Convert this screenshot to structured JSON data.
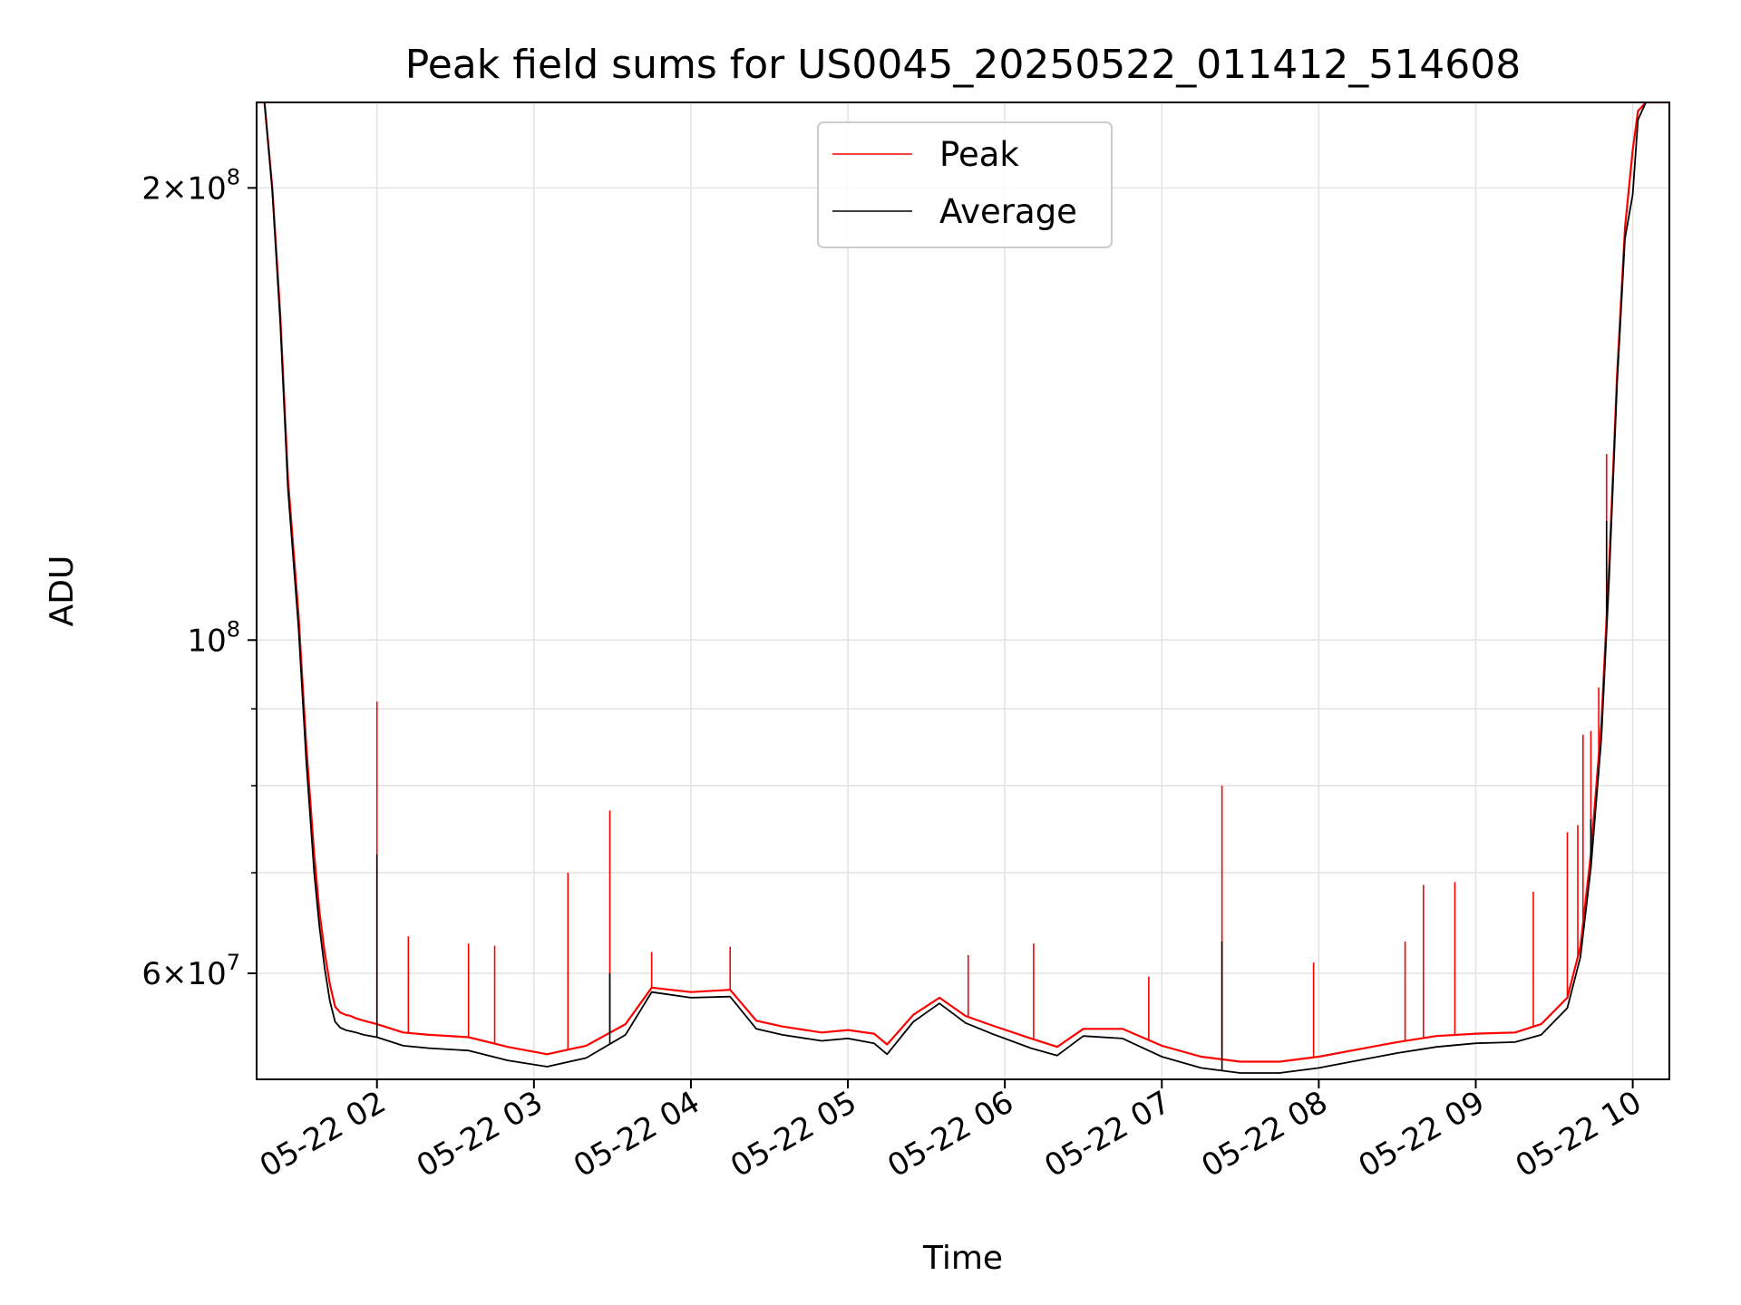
{
  "chart_data": {
    "type": "line",
    "title": "Peak field sums for US0045_20250522_011412_514608",
    "xlabel": "Time",
    "ylabel": "ADU",
    "yscale": "log",
    "grid": true,
    "legend_location": "upper center",
    "xlim": [
      "2025-05-22 01:14",
      "2025-05-22 10:14"
    ],
    "ylim": [
      51000000,
      228000000
    ],
    "x_ticks": [
      {
        "t": "2025-05-22 02:00",
        "label": "05-22 02"
      },
      {
        "t": "2025-05-22 03:00",
        "label": "05-22 03"
      },
      {
        "t": "2025-05-22 04:00",
        "label": "05-22 04"
      },
      {
        "t": "2025-05-22 05:00",
        "label": "05-22 05"
      },
      {
        "t": "2025-05-22 06:00",
        "label": "05-22 06"
      },
      {
        "t": "2025-05-22 07:00",
        "label": "05-22 07"
      },
      {
        "t": "2025-05-22 08:00",
        "label": "05-22 08"
      },
      {
        "t": "2025-05-22 09:00",
        "label": "05-22 09"
      },
      {
        "t": "2025-05-22 10:00",
        "label": "05-22 10"
      }
    ],
    "y_major_ticks": [
      {
        "value": 100000000,
        "base": "10",
        "exponent": "8"
      },
      {
        "value": 200000000,
        "mantissa": "2",
        "times": "×",
        "base": "10",
        "exponent": "8"
      },
      {
        "value": 60000000,
        "mantissa": "6",
        "times": "×",
        "base": "10",
        "exponent": "7"
      }
    ],
    "y_minor_ticks": [
      60000000,
      70000000,
      80000000,
      90000000,
      100000000,
      200000000
    ],
    "series": [
      {
        "name": "Peak",
        "color": "#ff0000",
        "x": [
          "2025-05-22 01:14",
          "2025-05-22 01:17",
          "2025-05-22 01:20",
          "2025-05-22 01:23",
          "2025-05-22 01:26",
          "2025-05-22 01:30",
          "2025-05-22 01:33",
          "2025-05-22 01:36",
          "2025-05-22 01:38",
          "2025-05-22 01:40",
          "2025-05-22 01:42",
          "2025-05-22 01:44",
          "2025-05-22 01:46",
          "2025-05-22 01:48",
          "2025-05-22 01:50",
          "2025-05-22 01:52",
          "2025-05-22 01:55",
          "2025-05-22 02:00",
          "2025-05-22 02:10",
          "2025-05-22 02:20",
          "2025-05-22 02:35",
          "2025-05-22 02:50",
          "2025-05-22 03:05",
          "2025-05-22 03:20",
          "2025-05-22 03:35",
          "2025-05-22 03:45",
          "2025-05-22 04:00",
          "2025-05-22 04:15",
          "2025-05-22 04:25",
          "2025-05-22 04:35",
          "2025-05-22 04:50",
          "2025-05-22 05:00",
          "2025-05-22 05:10",
          "2025-05-22 05:15",
          "2025-05-22 05:25",
          "2025-05-22 05:35",
          "2025-05-22 05:45",
          "2025-05-22 05:55",
          "2025-05-22 06:10",
          "2025-05-22 06:20",
          "2025-05-22 06:30",
          "2025-05-22 06:45",
          "2025-05-22 07:00",
          "2025-05-22 07:15",
          "2025-05-22 07:30",
          "2025-05-22 07:45",
          "2025-05-22 08:00",
          "2025-05-22 08:15",
          "2025-05-22 08:30",
          "2025-05-22 08:45",
          "2025-05-22 09:00",
          "2025-05-22 09:15",
          "2025-05-22 09:25",
          "2025-05-22 09:35",
          "2025-05-22 09:40",
          "2025-05-22 09:44",
          "2025-05-22 09:48",
          "2025-05-22 09:51",
          "2025-05-22 09:54",
          "2025-05-22 09:57",
          "2025-05-22 10:00",
          "2025-05-22 10:02",
          "2025-05-22 10:05",
          "2025-05-22 10:08",
          "2025-05-22 10:11",
          "2025-05-22 10:14"
        ],
        "values": [
          228000000,
          228000000,
          200000000,
          165000000,
          128000000,
          104000000,
          85000000,
          72000000,
          66000000,
          62000000,
          59000000,
          57000000,
          56500000,
          56300000,
          56200000,
          56000000,
          55800000,
          55500000,
          54800000,
          54600000,
          54400000,
          53600000,
          53000000,
          53700000,
          55500000,
          58700000,
          58300000,
          58500000,
          55800000,
          55300000,
          54800000,
          55000000,
          54700000,
          53800000,
          56300000,
          57800000,
          56200000,
          55400000,
          54300000,
          53600000,
          55100000,
          55100000,
          53700000,
          52800000,
          52400000,
          52400000,
          52800000,
          53400000,
          54000000,
          54500000,
          54700000,
          54800000,
          55500000,
          57800000,
          62500000,
          72000000,
          88000000,
          112000000,
          150000000,
          188000000,
          212000000,
          225000000,
          228000000,
          228000000,
          228000000,
          228000000
        ],
        "spikes": [
          {
            "t": "2025-05-22 02:00",
            "v": 91000000
          },
          {
            "t": "2025-05-22 02:12",
            "v": 63500000
          },
          {
            "t": "2025-05-22 02:35",
            "v": 62800000
          },
          {
            "t": "2025-05-22 02:45",
            "v": 62600000
          },
          {
            "t": "2025-05-22 03:13",
            "v": 70000000
          },
          {
            "t": "2025-05-22 03:29",
            "v": 77000000
          },
          {
            "t": "2025-05-22 03:45",
            "v": 62000000
          },
          {
            "t": "2025-05-22 04:15",
            "v": 62500000
          },
          {
            "t": "2025-05-22 05:46",
            "v": 61700000
          },
          {
            "t": "2025-05-22 06:11",
            "v": 62800000
          },
          {
            "t": "2025-05-22 06:55",
            "v": 59700000
          },
          {
            "t": "2025-05-22 07:23",
            "v": 80000000
          },
          {
            "t": "2025-05-22 07:58",
            "v": 61000000
          },
          {
            "t": "2025-05-22 08:33",
            "v": 63000000
          },
          {
            "t": "2025-05-22 08:40",
            "v": 68700000
          },
          {
            "t": "2025-05-22 08:52",
            "v": 69000000
          },
          {
            "t": "2025-05-22 09:22",
            "v": 68000000
          },
          {
            "t": "2025-05-22 09:35",
            "v": 74500000
          },
          {
            "t": "2025-05-22 09:39",
            "v": 75300000
          },
          {
            "t": "2025-05-22 09:41",
            "v": 86500000
          },
          {
            "t": "2025-05-22 09:44",
            "v": 87000000
          },
          {
            "t": "2025-05-22 09:47",
            "v": 93000000
          },
          {
            "t": "2025-05-22 09:50",
            "v": 133000000
          }
        ]
      },
      {
        "name": "Average",
        "color": "#000000",
        "x": [
          "2025-05-22 01:14",
          "2025-05-22 01:17",
          "2025-05-22 01:20",
          "2025-05-22 01:23",
          "2025-05-22 01:26",
          "2025-05-22 01:30",
          "2025-05-22 01:33",
          "2025-05-22 01:36",
          "2025-05-22 01:38",
          "2025-05-22 01:40",
          "2025-05-22 01:42",
          "2025-05-22 01:44",
          "2025-05-22 01:46",
          "2025-05-22 01:48",
          "2025-05-22 01:50",
          "2025-05-22 01:52",
          "2025-05-22 01:55",
          "2025-05-22 02:00",
          "2025-05-22 02:10",
          "2025-05-22 02:20",
          "2025-05-22 02:35",
          "2025-05-22 02:50",
          "2025-05-22 03:05",
          "2025-05-22 03:20",
          "2025-05-22 03:35",
          "2025-05-22 03:45",
          "2025-05-22 04:00",
          "2025-05-22 04:15",
          "2025-05-22 04:25",
          "2025-05-22 04:35",
          "2025-05-22 04:50",
          "2025-05-22 05:00",
          "2025-05-22 05:10",
          "2025-05-22 05:15",
          "2025-05-22 05:25",
          "2025-05-22 05:35",
          "2025-05-22 05:45",
          "2025-05-22 05:55",
          "2025-05-22 06:10",
          "2025-05-22 06:20",
          "2025-05-22 06:30",
          "2025-05-22 06:45",
          "2025-05-22 07:00",
          "2025-05-22 07:15",
          "2025-05-22 07:30",
          "2025-05-22 07:45",
          "2025-05-22 08:00",
          "2025-05-22 08:15",
          "2025-05-22 08:30",
          "2025-05-22 08:45",
          "2025-05-22 09:00",
          "2025-05-22 09:15",
          "2025-05-22 09:25",
          "2025-05-22 09:35",
          "2025-05-22 09:40",
          "2025-05-22 09:44",
          "2025-05-22 09:48",
          "2025-05-22 09:51",
          "2025-05-22 09:54",
          "2025-05-22 09:57",
          "2025-05-22 10:00",
          "2025-05-22 10:02",
          "2025-05-22 10:05",
          "2025-05-22 10:08",
          "2025-05-22 10:11",
          "2025-05-22 10:14"
        ],
        "values": [
          228000000,
          228000000,
          199000000,
          163000000,
          126000000,
          102000000,
          83000000,
          70000000,
          64500000,
          60500000,
          57500000,
          55700000,
          55200000,
          55000000,
          54900000,
          54800000,
          54600000,
          54400000,
          53700000,
          53500000,
          53300000,
          52500000,
          52000000,
          52700000,
          54600000,
          58300000,
          57800000,
          57900000,
          55100000,
          54600000,
          54100000,
          54300000,
          53900000,
          53000000,
          55700000,
          57300000,
          55600000,
          54700000,
          53500000,
          52900000,
          54500000,
          54300000,
          52800000,
          51900000,
          51500000,
          51500000,
          51900000,
          52500000,
          53100000,
          53600000,
          53900000,
          54000000,
          54600000,
          56900000,
          61500000,
          70500000,
          86000000,
          110000000,
          148000000,
          185000000,
          198000000,
          222000000,
          228000000,
          228000000,
          228000000,
          228000000
        ],
        "spikes": [
          {
            "t": "2025-05-22 02:00",
            "v": 72000000
          },
          {
            "t": "2025-05-22 03:29",
            "v": 60000000
          },
          {
            "t": "2025-05-22 07:23",
            "v": 63000000
          },
          {
            "t": "2025-05-22 09:44",
            "v": 76000000
          },
          {
            "t": "2025-05-22 09:50",
            "v": 120000000
          }
        ]
      }
    ]
  }
}
